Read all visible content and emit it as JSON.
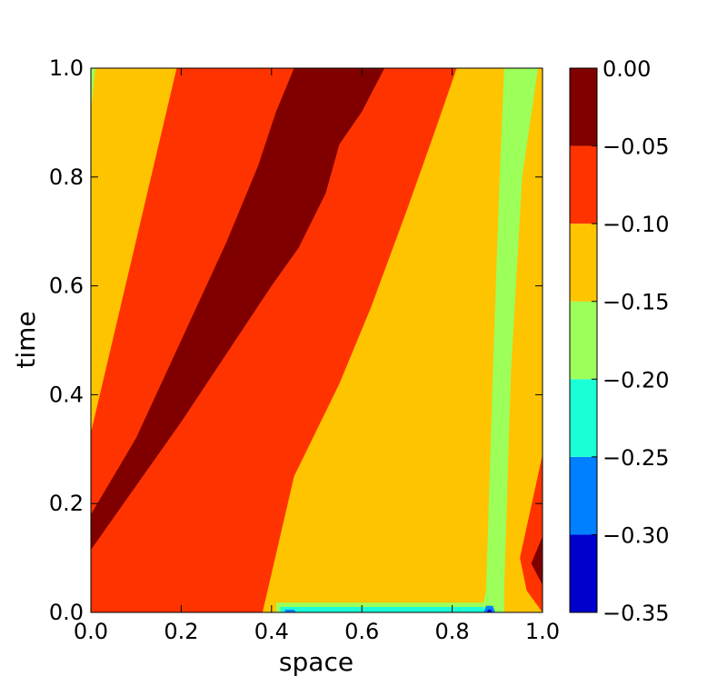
{
  "chart_data": {
    "type": "contourf",
    "xlabel": "space",
    "ylabel": "time",
    "xlim": [
      0.0,
      1.0
    ],
    "ylim": [
      0.0,
      1.0
    ],
    "x_ticks": [
      "0.0",
      "0.2",
      "0.4",
      "0.6",
      "0.8",
      "1.0"
    ],
    "y_ticks": [
      "0.0",
      "0.2",
      "0.4",
      "0.6",
      "0.8",
      "1.0"
    ],
    "colorbar": {
      "levels": [
        -0.35,
        -0.3,
        -0.25,
        -0.2,
        -0.15,
        -0.1,
        -0.05,
        0.0
      ],
      "tick_labels": [
        "−0.35",
        "−0.30",
        "−0.25",
        "−0.20",
        "−0.15",
        "−0.10",
        "−0.05",
        "0.00"
      ],
      "colors": [
        "#0000cd",
        "#0080ff",
        "#19ffd6",
        "#9cff5a",
        "#ffc400",
        "#ff3300",
        "#800000"
      ]
    },
    "regions": [
      {
        "name": "band-min0.10-to-min0.05-background",
        "level_index": 5,
        "polygon": [
          [
            0.0,
            0.0
          ],
          [
            1.0,
            0.0
          ],
          [
            1.0,
            1.0
          ],
          [
            0.0,
            1.0
          ]
        ]
      },
      {
        "name": "band-min0.15-to-min0.10-left",
        "level_index": 4,
        "polygon": [
          [
            0.0,
            0.33
          ],
          [
            0.19,
            1.0
          ],
          [
            0.0,
            1.0
          ]
        ]
      },
      {
        "name": "band-min0.20-to-min0.15-left-edge",
        "level_index": 3,
        "polygon": [
          [
            0.0,
            0.92
          ],
          [
            0.01,
            1.0
          ],
          [
            0.0,
            1.0
          ]
        ]
      },
      {
        "name": "band-min0.05-to-0.00-diagonal",
        "level_index": 6,
        "polygon": [
          [
            0.0,
            0.115
          ],
          [
            0.2,
            0.35
          ],
          [
            0.4,
            0.6
          ],
          [
            0.46,
            0.67
          ],
          [
            0.52,
            0.77
          ],
          [
            0.55,
            0.86
          ],
          [
            0.6,
            0.92
          ],
          [
            0.65,
            1.0
          ],
          [
            0.45,
            1.0
          ],
          [
            0.41,
            0.92
          ],
          [
            0.37,
            0.82
          ],
          [
            0.3,
            0.68
          ],
          [
            0.2,
            0.5
          ],
          [
            0.1,
            0.32
          ],
          [
            0.0,
            0.18
          ]
        ]
      },
      {
        "name": "band-min0.15-to-min0.10-right",
        "level_index": 4,
        "polygon": [
          [
            0.4,
            0.0
          ],
          [
            1.0,
            0.0
          ],
          [
            1.0,
            1.0
          ],
          [
            0.81,
            1.0
          ],
          [
            0.76,
            0.88
          ],
          [
            0.7,
            0.74
          ],
          [
            0.62,
            0.56
          ],
          [
            0.55,
            0.42
          ],
          [
            0.45,
            0.25
          ],
          [
            0.38,
            0.0
          ]
        ]
      },
      {
        "name": "band-min0.20-to-min0.15-strip",
        "level_index": 3,
        "polygon": [
          [
            0.865,
            0.0
          ],
          [
            0.915,
            0.0
          ],
          [
            0.915,
            0.04
          ],
          [
            0.93,
            0.44
          ],
          [
            0.955,
            0.8
          ],
          [
            0.99,
            1.0
          ],
          [
            0.915,
            1.0
          ],
          [
            0.905,
            0.8
          ],
          [
            0.89,
            0.44
          ],
          [
            0.875,
            0.04
          ]
        ]
      },
      {
        "name": "band-min0.10-to-min0.05-right-wedge",
        "level_index": 5,
        "polygon": [
          [
            0.95,
            0.1
          ],
          [
            1.0,
            0.29
          ],
          [
            1.0,
            0.0
          ],
          [
            0.965,
            0.04
          ]
        ]
      },
      {
        "name": "band-min0.05-to-0.00-right-tip",
        "level_index": 6,
        "polygon": [
          [
            0.975,
            0.09
          ],
          [
            1.0,
            0.14
          ],
          [
            1.0,
            0.05
          ]
        ]
      },
      {
        "name": "band-min0.20-to-min0.15-bottom",
        "level_index": 3,
        "polygon": [
          [
            0.41,
            0.0
          ],
          [
            0.88,
            0.0
          ],
          [
            0.875,
            0.018
          ],
          [
            0.41,
            0.018
          ]
        ]
      },
      {
        "name": "band-min0.25-to-min0.20-bottom",
        "level_index": 2,
        "polygon": [
          [
            0.42,
            0.0
          ],
          [
            0.875,
            0.0
          ],
          [
            0.87,
            0.01
          ],
          [
            0.42,
            0.01
          ]
        ]
      },
      {
        "name": "band-min0.30-to-min0.25-bottom",
        "level_index": 1,
        "polygon": [
          [
            0.43,
            0.0
          ],
          [
            0.455,
            0.0
          ],
          [
            0.45,
            0.005
          ],
          [
            0.43,
            0.005
          ]
        ]
      },
      {
        "name": "band-min0.30-to-min0.25-bottom-right",
        "level_index": 1,
        "polygon": [
          [
            0.87,
            0.0
          ],
          [
            0.895,
            0.0
          ],
          [
            0.89,
            0.012
          ],
          [
            0.875,
            0.012
          ]
        ]
      },
      {
        "name": "band-min0.35-to-min0.30-bottom-right",
        "level_index": 0,
        "polygon": [
          [
            0.877,
            0.0
          ],
          [
            0.888,
            0.0
          ],
          [
            0.886,
            0.005
          ],
          [
            0.879,
            0.005
          ]
        ]
      }
    ]
  }
}
